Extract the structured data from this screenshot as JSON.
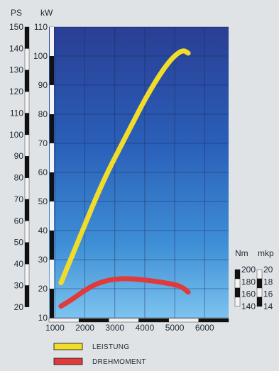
{
  "chart_data": {
    "type": "line",
    "x": {
      "ticks": [
        1000,
        2000,
        3000,
        4000,
        5000,
        6000
      ],
      "range": [
        800,
        6800
      ]
    },
    "y_kw": {
      "label": "kW",
      "ticks": [
        10,
        20,
        30,
        40,
        50,
        60,
        70,
        80,
        90,
        100,
        110
      ],
      "range": [
        10,
        110
      ]
    },
    "y_ps": {
      "label": "PS",
      "ticks": [
        20,
        30,
        40,
        50,
        60,
        70,
        80,
        90,
        100,
        110,
        120,
        130,
        140,
        150
      ],
      "range": [
        15,
        150
      ]
    },
    "y_nm": {
      "label": "Nm",
      "ticks": [
        140,
        160,
        180,
        200
      ]
    },
    "y_mkp": {
      "label": "mkp",
      "ticks": [
        14,
        16,
        18,
        20
      ]
    },
    "series": [
      {
        "name": "LEISTUNG",
        "color": "#f2dc2a",
        "x": [
          1200,
          1600,
          2000,
          2400,
          2800,
          3200,
          3600,
          4000,
          4400,
          4800,
          5100,
          5300,
          5450
        ],
        "y": [
          22,
          32,
          42,
          52,
          61,
          69,
          77,
          85,
          92,
          98,
          101,
          102,
          101
        ]
      },
      {
        "name": "DREHMOMENT",
        "color": "#e03a3a",
        "x": [
          1200,
          1600,
          2000,
          2400,
          2800,
          3200,
          3600,
          4000,
          4400,
          4800,
          5100,
          5300,
          5450
        ],
        "y": [
          14,
          16.5,
          19.5,
          21.8,
          23.0,
          23.5,
          23.4,
          23.0,
          22.5,
          21.8,
          21.2,
          20.2,
          18.8
        ]
      }
    ],
    "grid": true,
    "legend_position": "bottom-left"
  }
}
